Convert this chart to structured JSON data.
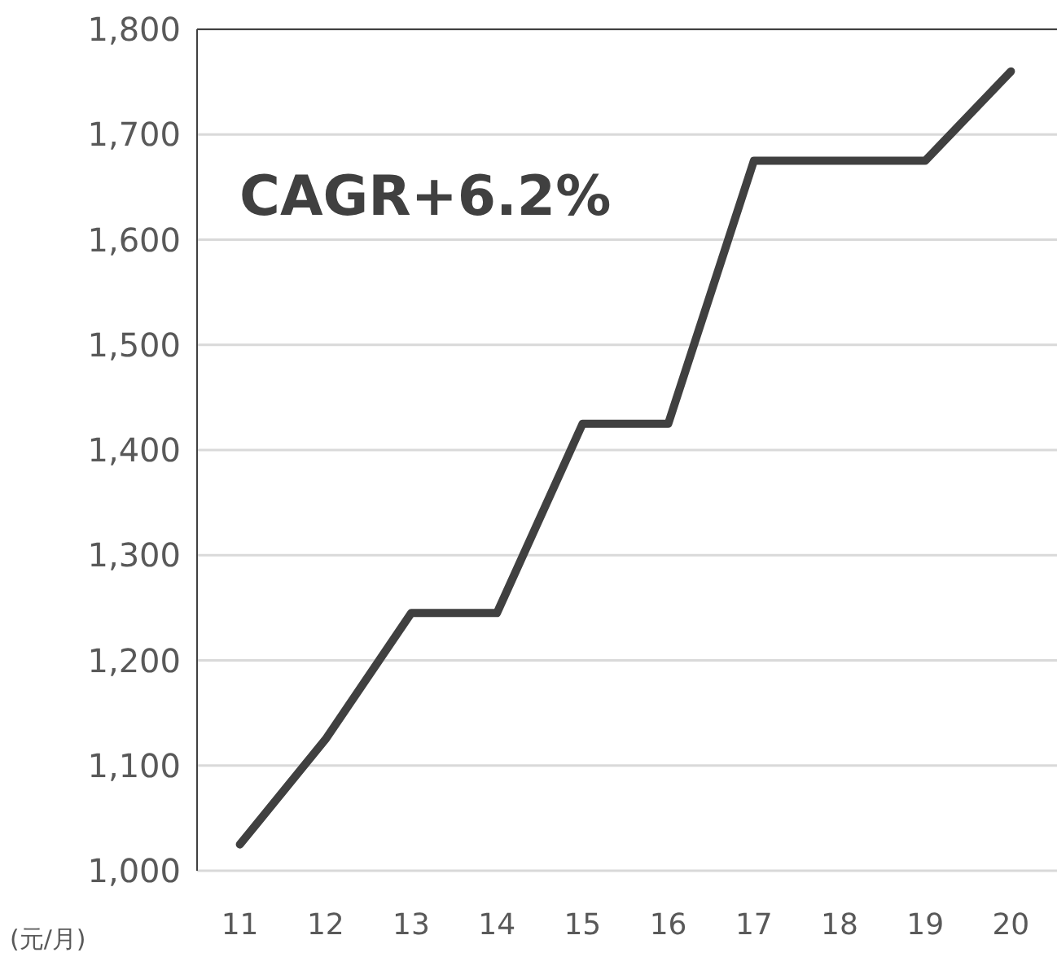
{
  "chart_data": {
    "type": "line",
    "categories": [
      "11",
      "12",
      "13",
      "14",
      "15",
      "16",
      "17",
      "18",
      "19",
      "20"
    ],
    "series": [
      {
        "color": "#404040",
        "values": [
          1025,
          1125,
          1245,
          1245,
          1425,
          1425,
          1675,
          1675,
          1675,
          1760
        ]
      }
    ],
    "ylim": [
      1000,
      1800
    ],
    "yticks": [
      {
        "value": 1000,
        "label": "1,000"
      },
      {
        "value": 1100,
        "label": "1,100"
      },
      {
        "value": 1200,
        "label": "1,200"
      },
      {
        "value": 1300,
        "label": "1,300"
      },
      {
        "value": 1400,
        "label": "1,400"
      },
      {
        "value": 1500,
        "label": "1,500"
      },
      {
        "value": 1600,
        "label": "1,600"
      },
      {
        "value": 1700,
        "label": "1,700"
      },
      {
        "value": 1800,
        "label": "1,800"
      }
    ],
    "ylabel": "(元/月)",
    "annotations": [
      "CAGR+6.2%"
    ],
    "grid": "y",
    "marker": "none",
    "line_style": "solid"
  }
}
